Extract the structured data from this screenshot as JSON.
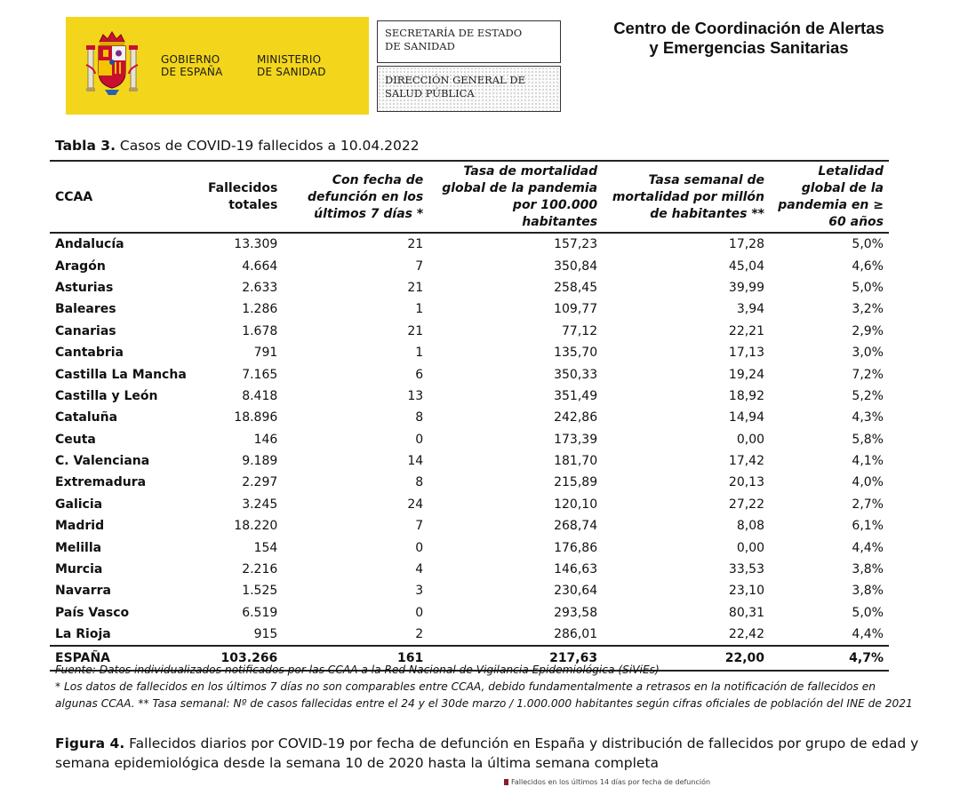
{
  "header": {
    "gov": "GOBIERNO\nDE ESPAÑA",
    "ministry": "MINISTERIO\nDE SANIDAD",
    "secretaria": "SECRETARÍA DE ESTADO\nDE SANIDAD",
    "direccion": "DIRECCIÓN GENERAL DE\nSALUD PÚBLICA",
    "center": "Centro de Coordinación de Alertas\ny Emergencias Sanitarias"
  },
  "table": {
    "label": "Tabla 3.",
    "title": " Casos de COVID-19 fallecidos a 10.04.2022",
    "headers": [
      "CCAA",
      "Fallecidos totales",
      "Con fecha de defunción en los últimos 7 días *",
      "Tasa de mortalidad global de la pandemia por 100.000 habitantes",
      "Tasa semanal de mortalidad por millón de habitantes **",
      "Letalidad global de la pandemia en ≥ 60 años"
    ],
    "rows": [
      [
        "Andalucía",
        "13.309",
        "21",
        "157,23",
        "17,28",
        "5,0%"
      ],
      [
        "Aragón",
        "4.664",
        "7",
        "350,84",
        "45,04",
        "4,6%"
      ],
      [
        "Asturias",
        "2.633",
        "21",
        "258,45",
        "39,99",
        "5,0%"
      ],
      [
        "Baleares",
        "1.286",
        "1",
        "109,77",
        "3,94",
        "3,2%"
      ],
      [
        "Canarias",
        "1.678",
        "21",
        "77,12",
        "22,21",
        "2,9%"
      ],
      [
        "Cantabria",
        "791",
        "1",
        "135,70",
        "17,13",
        "3,0%"
      ],
      [
        "Castilla La Mancha",
        "7.165",
        "6",
        "350,33",
        "19,24",
        "7,2%"
      ],
      [
        "Castilla y León",
        "8.418",
        "13",
        "351,49",
        "18,92",
        "5,2%"
      ],
      [
        "Cataluña",
        "18.896",
        "8",
        "242,86",
        "14,94",
        "4,3%"
      ],
      [
        "Ceuta",
        "146",
        "0",
        "173,39",
        "0,00",
        "5,8%"
      ],
      [
        "C. Valenciana",
        "9.189",
        "14",
        "181,70",
        "17,42",
        "4,1%"
      ],
      [
        "Extremadura",
        "2.297",
        "8",
        "215,89",
        "20,13",
        "4,0%"
      ],
      [
        "Galicia",
        "3.245",
        "24",
        "120,10",
        "27,22",
        "2,7%"
      ],
      [
        "Madrid",
        "18.220",
        "7",
        "268,74",
        "8,08",
        "6,1%"
      ],
      [
        "Melilla",
        "154",
        "0",
        "176,86",
        "0,00",
        "4,4%"
      ],
      [
        "Murcia",
        "2.216",
        "4",
        "146,63",
        "33,53",
        "3,8%"
      ],
      [
        "Navarra",
        "1.525",
        "3",
        "230,64",
        "23,10",
        "3,8%"
      ],
      [
        "País Vasco",
        "6.519",
        "0",
        "293,58",
        "80,31",
        "5,0%"
      ],
      [
        "La Rioja",
        "915",
        "2",
        "286,01",
        "22,42",
        "4,4%"
      ]
    ],
    "total": [
      "ESPAÑA",
      "103.266",
      "161",
      "217,63",
      "22,00",
      "4,7%"
    ]
  },
  "notes": [
    "Fuente: Datos individualizados notificados por las CCAA a la Red Nacional de Vigilancia Epidemiológica (SiViEs)",
    "* Los datos de fallecidos en los últimos 7 días no son comparables entre CCAA, debido fundamentalmente a retrasos en la notificación de fallecidos en",
    "algunas CCAA. ** Tasa semanal: Nº de casos fallecidas entre el 24 y el 30de marzo / 1.000.000 habitantes según cifras oficiales de población del INE de 2021"
  ],
  "figure": {
    "label": "Figura 4.",
    "caption": " Fallecidos diarios por COVID-19 por fecha de defunción en España y distribución de fallecidos por grupo de edad y semana epidemiológica desde la semana 10 de 2020 hasta la última semana completa",
    "legend": "Fallecidos en los últimos 14 días por fecha de defunción"
  },
  "colors": {
    "gov_yellow": "#f3d51b",
    "legend_swatch": "#8b1c2c"
  }
}
